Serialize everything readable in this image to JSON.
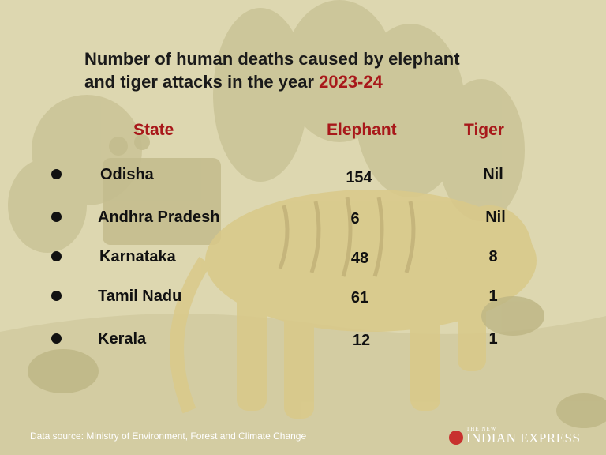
{
  "title": {
    "line1": "Number of human deaths caused by elephant",
    "line2_prefix": "and tiger attacks in the year ",
    "year": "2023-24"
  },
  "chart_data": {
    "type": "table",
    "columns": [
      "State",
      "Elephant",
      "Tiger"
    ],
    "rows": [
      {
        "state": "Odisha",
        "elephant": "154",
        "tiger": "Nil"
      },
      {
        "state": "Andhra Pradesh",
        "elephant": "6",
        "tiger": "Nil"
      },
      {
        "state": "Karnataka",
        "elephant": "48",
        "tiger": "8"
      },
      {
        "state": "Tamil Nadu",
        "elephant": "61",
        "tiger": "1"
      },
      {
        "state": "Kerala",
        "elephant": "12",
        "tiger": "1"
      }
    ]
  },
  "footer": {
    "source": "Data source: Ministry of Environment, Forest and Climate Change",
    "logo_small": "THE NEW",
    "logo_big": "INDIAN EXPRESS"
  },
  "colors": {
    "background": "#ddd7b0",
    "accent": "#a8181a",
    "text": "#111111"
  },
  "icons": [
    "bullet-icon",
    "logo-mark-icon"
  ]
}
